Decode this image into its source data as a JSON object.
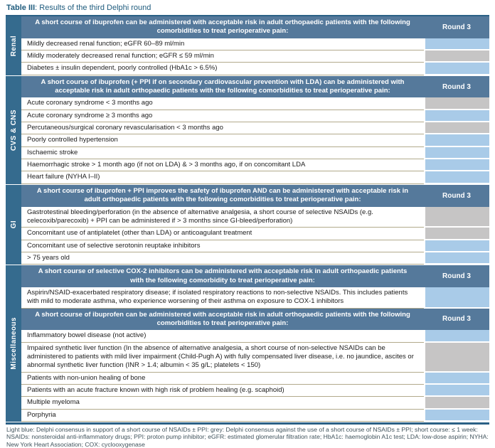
{
  "title": {
    "label": "Table III",
    "rest": ": Results of the third Delphi round"
  },
  "round_column_header": "Round 3",
  "colors": {
    "header_bar": "#55799b",
    "section_column": "#356b8e",
    "consensus_support_light_blue": "#a9cbe8",
    "consensus_against_grey": "#c6c5c5",
    "row_divider_tan": "#b2aa8c",
    "table_border_dark_blue": "#2b6186"
  },
  "sections": [
    {
      "name": "Renal",
      "blocks": [
        {
          "type": "header",
          "text": "A short course of ibuprofen can be administered with acceptable risk in adult orthopaedic patients with the following comorbidities to treat perioperative pain:",
          "round": "Round 3"
        },
        {
          "type": "row",
          "status": "blue",
          "text": "Mildly decreased renal function; eGFR 60–89 ml/min"
        },
        {
          "type": "row",
          "status": "grey",
          "text": "Mildly moderately decreased renal function; eGFR ≤ 59 ml/min"
        },
        {
          "type": "row",
          "status": "blue",
          "text": "Diabetes ± insulin dependent, poorly controlled (HbA1c > 6.5%)"
        }
      ]
    },
    {
      "name": "CVS & CNS",
      "blocks": [
        {
          "type": "header",
          "text": "A short course of ibuprofen (+ PPI if on secondary cardiovascular prevention with LDA) can be administered with acceptable risk in adult orthopaedic patients with the following comorbidities to treat perioperative pain:",
          "round": "Round 3"
        },
        {
          "type": "row",
          "status": "grey",
          "text": "Acute coronary syndrome < 3 months ago"
        },
        {
          "type": "row",
          "status": "blue",
          "text": "Acute coronary syndrome ≥ 3 months ago"
        },
        {
          "type": "row",
          "status": "grey",
          "text": "Percutaneous/surgical coronary revascularisation < 3 months ago"
        },
        {
          "type": "row",
          "status": "blue",
          "text": "Poorly controlled hypertension"
        },
        {
          "type": "row",
          "status": "blue",
          "text": "Ischaemic stroke"
        },
        {
          "type": "row",
          "status": "blue",
          "text": "Haemorrhagic stroke > 1 month ago (if not on LDA) & > 3 months ago, if on concomitant LDA"
        },
        {
          "type": "row",
          "status": "blue",
          "text": "Heart failure (NYHA I–II)"
        }
      ]
    },
    {
      "name": "GI",
      "blocks": [
        {
          "type": "header",
          "text": "A short course of ibuprofen + PPI improves the safety of ibuprofen AND can be administered with acceptable risk in adult orthopaedic patients with the following comorbidities to treat perioperative pain:",
          "round": "Round 3"
        },
        {
          "type": "row",
          "status": "grey",
          "text": "Gastrotestinal bleeding/perforation (in the absence of alternative analgesia, a short course of selective NSAIDs (e.g. celecoxib/parecoxib) + PPI can be administered if > 3 months since GI-bleed/perforation)"
        },
        {
          "type": "row",
          "status": "grey",
          "text": "Concomitant use of antiplatelet (other than LDA) or anticoagulant treatment"
        },
        {
          "type": "row",
          "status": "blue",
          "text": "Concomitant use of selective serotonin reuptake inhibitors"
        },
        {
          "type": "row",
          "status": "blue",
          "text": "> 75 years old"
        }
      ]
    },
    {
      "name": "Miscellaneous",
      "blocks": [
        {
          "type": "header",
          "text": "A short course of selective COX-2 inhibitors can be administered with acceptable risk in adult orthopaedic patients with the following comorbidity to treat perioperative pain:",
          "round": "Round 3"
        },
        {
          "type": "row",
          "status": "blue",
          "text": "Aspirin/NSAID-exacerbated respiratory disease; if isolated respiratory reactions to non-selective NSAIDs. This includes patients with mild to moderate asthma, who experience worsening of their asthma on exposure to COX-1 inhibitors"
        },
        {
          "type": "header",
          "text": "A short course of ibuprofen can be administered with acceptable risk in adult orthopaedic patients with the following comorbidities to treat perioperative pain:",
          "round": "Round 3"
        },
        {
          "type": "row",
          "status": "blue",
          "text": "Inflammatory bowel disease (not active)"
        },
        {
          "type": "row",
          "status": "grey",
          "text": "Impaired synthetic liver function (In the absence of alternative analgesia, a short course of non-selective NSAIDs can be administered to patients with mild liver impairment (Child-Pugh A) with fully compensated liver disease, i.e. no jaundice, ascites or abnormal synthetic liver function (INR > 1.4; albumin < 35 g/L; platelets < 150)"
        },
        {
          "type": "row",
          "status": "blue",
          "text": "Patients with non-union healing of bone"
        },
        {
          "type": "row",
          "status": "blue",
          "text": "Patients with an acute fracture known with high risk of problem healing (e.g. scaphoid)"
        },
        {
          "type": "row",
          "status": "grey",
          "text": "Multiple myeloma"
        },
        {
          "type": "row",
          "status": "blue",
          "text": "Porphyria"
        }
      ]
    }
  ],
  "footer": "Light blue: Delphi consensus in support of a short course of NSAIDs ± PPI: grey: Delphi consensus against the use of a short course of NSAIDs ± PPI; short course: ≤ 1 week: NSAIDs: nonsteroidal anti-inflammatory drugs; PPI: proton pump inhibitor; eGFR: estimated glomerular filtration rate; HbA1c: haemoglobin A1c test; LDA: low-dose aspirin; NYHA: New York Heart Association; COX: cyclooxygenase"
}
